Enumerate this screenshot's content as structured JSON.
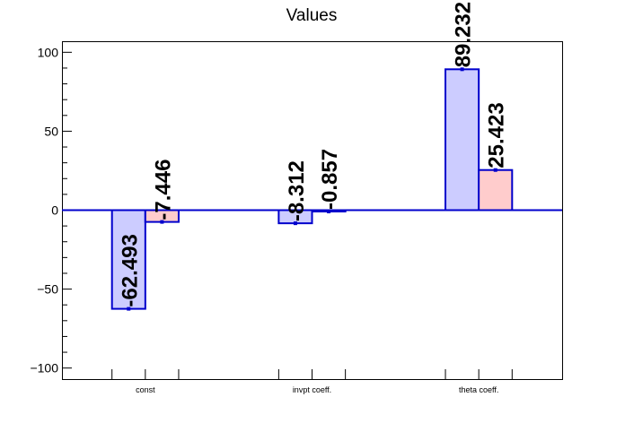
{
  "chart_data": {
    "type": "bar",
    "title": "Values",
    "categories": [
      "const",
      "invpt coeff.",
      "theta coeff."
    ],
    "ylim": [
      -107,
      107
    ],
    "yticks": [
      -100,
      -50,
      0,
      50,
      100
    ],
    "ytick_labels": [
      "−100",
      "−50",
      "0",
      "50",
      "100"
    ],
    "grid": false,
    "series": [
      {
        "values": [
          -62.493,
          -8.312,
          89.232
        ],
        "labels": [
          "-62.493",
          "-8.312",
          "89.232"
        ],
        "fill": "#ccccff",
        "stroke": "#0000cc"
      },
      {
        "values": [
          -7.446,
          -0.857,
          25.423
        ],
        "labels": [
          "-7.446",
          "-0.857",
          "25.423"
        ],
        "fill": "#ffcccc",
        "stroke": "#0000cc"
      }
    ],
    "zero_line_color": "#0000cc"
  }
}
